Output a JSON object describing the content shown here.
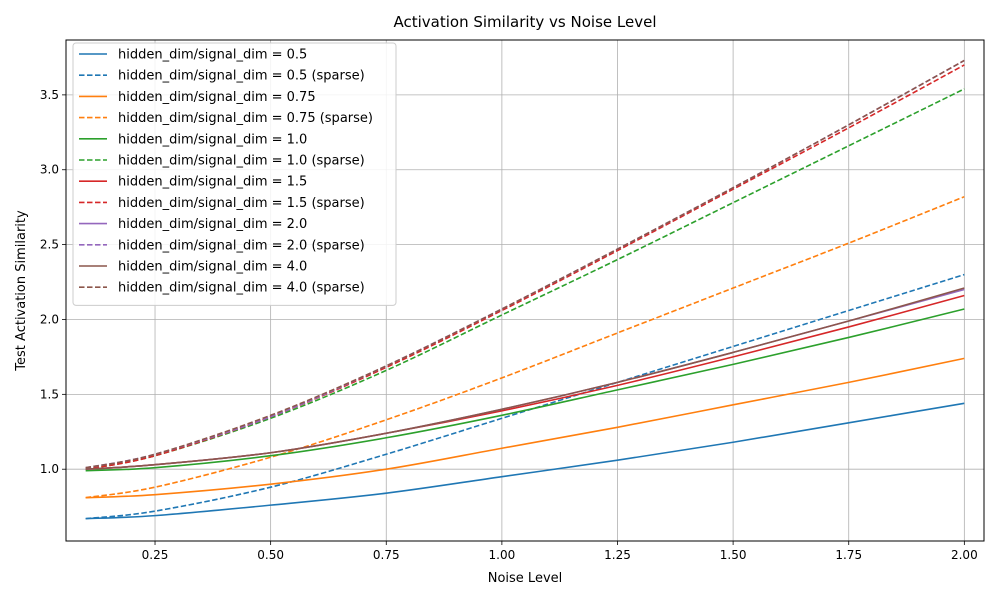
{
  "chart_data": {
    "type": "line",
    "title": "Activation Similarity vs Noise Level",
    "xlabel": "Noise Level",
    "ylabel": "Test Activation Similarity",
    "xlim": [
      0.0575,
      2.0425
    ],
    "ylim": [
      0.5205,
      3.8665
    ],
    "xticks": [
      0.25,
      0.5,
      0.75,
      1.0,
      1.25,
      1.5,
      1.75,
      2.0
    ],
    "xtick_labels": [
      "0.25",
      "0.50",
      "0.75",
      "1.00",
      "1.25",
      "1.50",
      "1.75",
      "2.00"
    ],
    "yticks": [
      1.0,
      1.5,
      2.0,
      2.5,
      3.0,
      3.5
    ],
    "ytick_labels": [
      "1.0",
      "1.5",
      "2.0",
      "2.5",
      "3.0",
      "3.5"
    ],
    "grid": true,
    "legend_position": "top-left",
    "x": [
      0.1,
      0.25,
      0.5,
      0.75,
      1.0,
      1.25,
      1.5,
      1.75,
      2.0
    ],
    "series": [
      {
        "name": "hidden_dim/signal_dim = 0.5",
        "color": "#1f77b4",
        "style": "solid",
        "values": [
          0.67,
          0.69,
          0.76,
          0.84,
          0.95,
          1.06,
          1.18,
          1.31,
          1.44
        ]
      },
      {
        "name": "hidden_dim/signal_dim = 0.5 (sparse)",
        "color": "#1f77b4",
        "style": "dashed",
        "values": [
          0.67,
          0.72,
          0.88,
          1.1,
          1.34,
          1.58,
          1.82,
          2.06,
          2.3
        ]
      },
      {
        "name": "hidden_dim/signal_dim = 0.75",
        "color": "#ff7f0e",
        "style": "solid",
        "values": [
          0.81,
          0.83,
          0.9,
          1.0,
          1.14,
          1.28,
          1.43,
          1.58,
          1.74
        ]
      },
      {
        "name": "hidden_dim/signal_dim = 0.75 (sparse)",
        "color": "#ff7f0e",
        "style": "dashed",
        "values": [
          0.81,
          0.88,
          1.08,
          1.33,
          1.61,
          1.91,
          2.21,
          2.51,
          2.82
        ]
      },
      {
        "name": "hidden_dim/signal_dim = 1.0",
        "color": "#2ca02c",
        "style": "solid",
        "values": [
          0.99,
          1.01,
          1.09,
          1.21,
          1.36,
          1.53,
          1.7,
          1.88,
          2.07
        ]
      },
      {
        "name": "hidden_dim/signal_dim = 1.0 (sparse)",
        "color": "#2ca02c",
        "style": "dashed",
        "values": [
          1.0,
          1.09,
          1.34,
          1.66,
          2.03,
          2.4,
          2.78,
          3.16,
          3.54
        ]
      },
      {
        "name": "hidden_dim/signal_dim = 1.5",
        "color": "#d62728",
        "style": "solid",
        "values": [
          1.0,
          1.03,
          1.11,
          1.24,
          1.39,
          1.56,
          1.75,
          1.95,
          2.16
        ]
      },
      {
        "name": "hidden_dim/signal_dim = 1.5 (sparse)",
        "color": "#d62728",
        "style": "dashed",
        "values": [
          1.0,
          1.09,
          1.35,
          1.68,
          2.06,
          2.46,
          2.87,
          3.28,
          3.7
        ]
      },
      {
        "name": "hidden_dim/signal_dim = 2.0",
        "color": "#9467bd",
        "style": "solid",
        "values": [
          1.0,
          1.03,
          1.11,
          1.24,
          1.4,
          1.58,
          1.78,
          1.99,
          2.2
        ]
      },
      {
        "name": "hidden_dim/signal_dim = 2.0 (sparse)",
        "color": "#9467bd",
        "style": "dashed",
        "values": [
          1.01,
          1.1,
          1.35,
          1.69,
          2.07,
          2.47,
          2.88,
          3.3,
          3.73
        ]
      },
      {
        "name": "hidden_dim/signal_dim = 4.0",
        "color": "#8c564b",
        "style": "solid",
        "values": [
          1.0,
          1.03,
          1.11,
          1.24,
          1.4,
          1.58,
          1.78,
          1.99,
          2.21
        ]
      },
      {
        "name": "hidden_dim/signal_dim = 4.0 (sparse)",
        "color": "#8c564b",
        "style": "dashed",
        "values": [
          1.01,
          1.1,
          1.36,
          1.69,
          2.07,
          2.47,
          2.88,
          3.3,
          3.73
        ]
      }
    ]
  }
}
